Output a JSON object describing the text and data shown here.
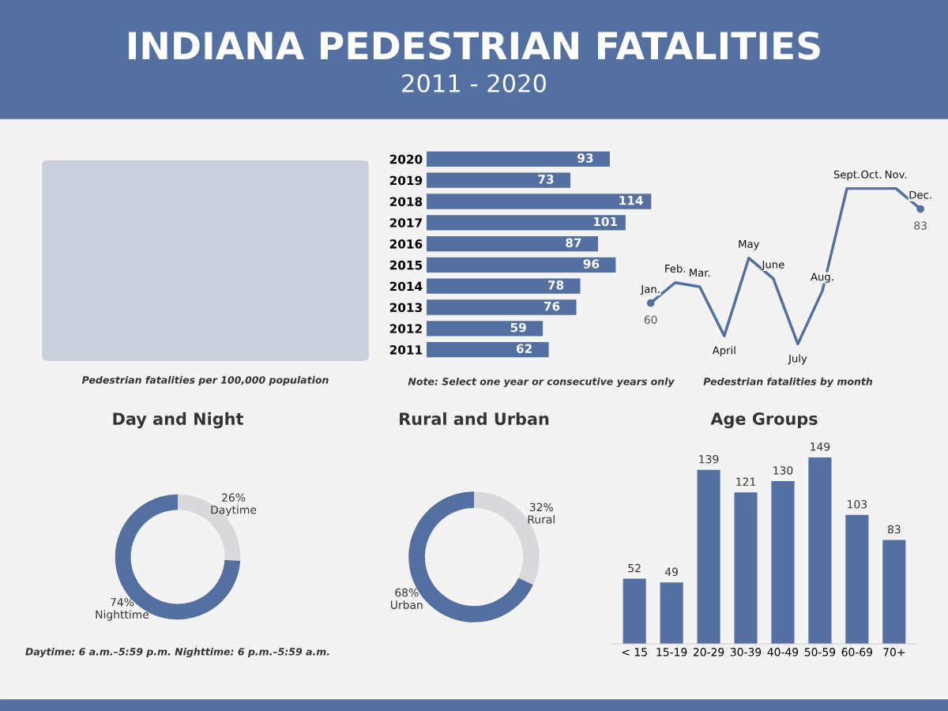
{
  "chart_data": [
    {
      "type": "other",
      "title": "INDIANA PEDESTRIAN FATALITIES",
      "subtitle": "2011 - 2020",
      "annotations": [
        "Pedestrian fatalities per 100,000 population"
      ]
    },
    {
      "type": "bar",
      "orientation": "horizontal",
      "categories": [
        "2020",
        "2019",
        "2018",
        "2017",
        "2016",
        "2015",
        "2014",
        "2013",
        "2012",
        "2011"
      ],
      "values": [
        93,
        73,
        114,
        101,
        87,
        96,
        78,
        76,
        59,
        62
      ],
      "color": "#5470a0",
      "data_labels": true,
      "annotations": [
        "Note: Select one year or consecutive years only"
      ]
    },
    {
      "type": "line",
      "categories": [
        "Jan.",
        "Feb.",
        "Mar.",
        "April",
        "May",
        "June",
        "July",
        "Aug.",
        "Sept.",
        "Oct.",
        "Nov.",
        "Dec."
      ],
      "values": [
        60,
        65,
        64,
        52,
        71,
        66,
        50,
        63,
        88,
        88,
        88,
        83
      ],
      "value_labels": [
        "60",
        null,
        null,
        null,
        null,
        null,
        null,
        null,
        null,
        null,
        null,
        "83"
      ],
      "color": "#5470a0",
      "annotations": [
        "Pedestrian fatalities by month"
      ]
    },
    {
      "type": "donut",
      "title": "Day and Night",
      "categories": [
        "Daytime",
        "Nighttime"
      ],
      "values": [
        26,
        74
      ],
      "value_labels": [
        "26%",
        "74%"
      ],
      "colors": [
        "#d9d9db",
        "#5470a0"
      ],
      "annotations": [
        "Daytime: 6 a.m.–5:59 p.m. Nighttime: 6 p.m.–5:59 a.m."
      ]
    },
    {
      "type": "donut",
      "title": "Rural and Urban",
      "categories": [
        "Rural",
        "Urban"
      ],
      "values": [
        32,
        68
      ],
      "value_labels": [
        "32%",
        "68%"
      ],
      "colors": [
        "#d9d9db",
        "#5470a0"
      ]
    },
    {
      "type": "bar",
      "title": "Age Groups",
      "categories": [
        "< 15",
        "15-19",
        "20-29",
        "30-39",
        "40-49",
        "50-59",
        "60-69",
        "70+"
      ],
      "values": [
        52,
        49,
        139,
        121,
        130,
        149,
        103,
        83
      ],
      "color": "#5470a0",
      "data_labels": true
    }
  ]
}
